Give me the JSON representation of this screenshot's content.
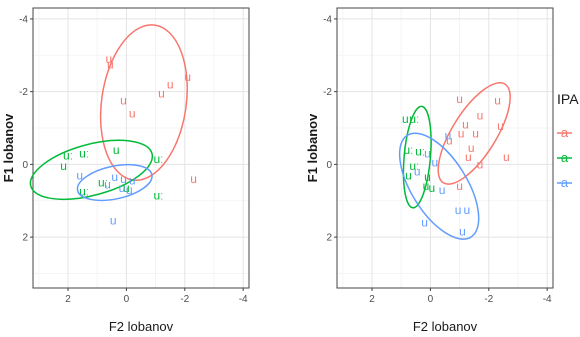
{
  "chart_data": [
    {
      "type": "scatter",
      "title": "",
      "xlabel": "F2 lobanov",
      "ylabel": "F1 lobanov",
      "xlim": [
        3.2,
        -4.2
      ],
      "ylim": [
        -4.3,
        3.4
      ],
      "x_reversed": true,
      "y_reversed": true,
      "xticks": [
        "2",
        "0",
        "-2",
        "-4"
      ],
      "xtick_values": [
        2,
        0,
        -2,
        -4
      ],
      "yticks": [
        "-4",
        "-2",
        "0",
        "2"
      ],
      "ytick_values": [
        -4,
        -2,
        0,
        2
      ],
      "grid": true,
      "series": [
        {
          "legend_key": "a",
          "color": "#F8766D",
          "points": [
            {
              "x": 0.6,
              "y": -2.9,
              "label": "u"
            },
            {
              "x": 0.55,
              "y": -2.75,
              "label": "u"
            },
            {
              "x": -2.1,
              "y": -2.4,
              "label": "u"
            },
            {
              "x": -1.5,
              "y": -2.2,
              "label": "u"
            },
            {
              "x": -1.2,
              "y": -1.95,
              "label": "u"
            },
            {
              "x": 0.1,
              "y": -1.75,
              "label": "u"
            },
            {
              "x": -0.2,
              "y": -1.4,
              "label": "u"
            },
            {
              "x": -2.3,
              "y": 0.4,
              "label": "u"
            }
          ],
          "ellipse": {
            "cx": -0.6,
            "cy": -1.7,
            "rx": 1.45,
            "ry": 2.15,
            "angle": 8
          }
        },
        {
          "legend_key": "a",
          "color": "#00BA38",
          "points": [
            {
              "x": 2.0,
              "y": -0.25,
              "label": "uː"
            },
            {
              "x": 1.45,
              "y": -0.3,
              "label": "uː"
            },
            {
              "x": 0.35,
              "y": -0.4,
              "label": "u"
            },
            {
              "x": -1.1,
              "y": -0.15,
              "label": "uː"
            },
            {
              "x": 2.15,
              "y": 0.05,
              "label": "u"
            },
            {
              "x": 0.8,
              "y": 0.5,
              "label": "uː"
            },
            {
              "x": 0.0,
              "y": 0.65,
              "label": "u"
            },
            {
              "x": 1.45,
              "y": 0.75,
              "label": "uː"
            },
            {
              "x": -1.1,
              "y": 0.85,
              "label": "uː"
            }
          ],
          "ellipse": {
            "cx": 1.2,
            "cy": 0.15,
            "rx": 2.15,
            "ry": 0.7,
            "angle": -15
          }
        },
        {
          "legend_key": "a",
          "color": "#619CFF",
          "points": [
            {
              "x": 1.6,
              "y": 0.3,
              "label": "u"
            },
            {
              "x": 0.4,
              "y": 0.35,
              "label": "u"
            },
            {
              "x": 0.1,
              "y": 0.4,
              "label": "u"
            },
            {
              "x": -0.2,
              "y": 0.45,
              "label": "u"
            },
            {
              "x": 0.65,
              "y": 0.55,
              "label": "u"
            },
            {
              "x": 0.15,
              "y": 0.65,
              "label": "u"
            },
            {
              "x": -0.1,
              "y": 0.7,
              "label": "u"
            },
            {
              "x": 0.45,
              "y": 1.55,
              "label": "u"
            }
          ],
          "ellipse": {
            "cx": 0.4,
            "cy": 0.5,
            "rx": 1.3,
            "ry": 0.45,
            "angle": -12
          }
        }
      ]
    },
    {
      "type": "scatter",
      "title": "",
      "xlabel": "F2 lobanov",
      "ylabel": "F1 lobanov",
      "xlim": [
        3.2,
        -4.2
      ],
      "ylim": [
        -4.3,
        3.4
      ],
      "x_reversed": true,
      "y_reversed": true,
      "xticks": [
        "2",
        "0",
        "-2",
        "-4"
      ],
      "xtick_values": [
        2,
        0,
        -2,
        -4
      ],
      "yticks": [
        "-4",
        "-2",
        "0",
        "2"
      ],
      "ytick_values": [
        -4,
        -2,
        0,
        2
      ],
      "grid": true,
      "series": [
        {
          "legend_key": "a",
          "color": "#F8766D",
          "points": [
            {
              "x": -1.0,
              "y": -1.8,
              "label": "u"
            },
            {
              "x": -2.3,
              "y": -1.75,
              "label": "u"
            },
            {
              "x": -1.7,
              "y": -1.35,
              "label": "u"
            },
            {
              "x": -1.2,
              "y": -1.1,
              "label": "u"
            },
            {
              "x": -2.4,
              "y": -1.05,
              "label": "u"
            },
            {
              "x": -1.05,
              "y": -0.85,
              "label": "u"
            },
            {
              "x": -1.55,
              "y": -0.85,
              "label": "u"
            },
            {
              "x": -0.65,
              "y": -0.65,
              "label": "u"
            },
            {
              "x": -1.4,
              "y": -0.45,
              "label": "u"
            },
            {
              "x": -1.3,
              "y": -0.2,
              "label": "u"
            },
            {
              "x": -2.6,
              "y": -0.2,
              "label": "u"
            },
            {
              "x": -1.7,
              "y": 0.0,
              "label": "u"
            },
            {
              "x": -1.0,
              "y": 0.6,
              "label": "u"
            }
          ],
          "ellipse": {
            "cx": -1.5,
            "cy": -0.85,
            "rx": 0.75,
            "ry": 1.6,
            "angle": 32
          }
        },
        {
          "legend_key": "a",
          "color": "#00BA38",
          "points": [
            {
              "x": 0.8,
              "y": -1.25,
              "label": "uː"
            },
            {
              "x": 0.55,
              "y": -1.25,
              "label": "uː"
            },
            {
              "x": 0.75,
              "y": -0.4,
              "label": "uː"
            },
            {
              "x": 0.35,
              "y": -0.35,
              "label": "uː"
            },
            {
              "x": 0.55,
              "y": 0.05,
              "label": "uː"
            },
            {
              "x": 0.75,
              "y": 0.3,
              "label": "u"
            },
            {
              "x": 0.1,
              "y": 0.35,
              "label": "u"
            },
            {
              "x": 0.15,
              "y": 0.6,
              "label": "u"
            },
            {
              "x": -0.05,
              "y": 0.65,
              "label": "u"
            }
          ],
          "ellipse": {
            "cx": 0.45,
            "cy": -0.2,
            "rx": 0.45,
            "ry": 1.4,
            "angle": 5
          }
        },
        {
          "legend_key": "a",
          "color": "#619CFF",
          "points": [
            {
              "x": -0.6,
              "y": -0.8,
              "label": "u"
            },
            {
              "x": 0.1,
              "y": -0.3,
              "label": "u"
            },
            {
              "x": -0.15,
              "y": -0.05,
              "label": "u"
            },
            {
              "x": 0.45,
              "y": 0.2,
              "label": "u"
            },
            {
              "x": -0.4,
              "y": 0.7,
              "label": "u"
            },
            {
              "x": -0.95,
              "y": 1.25,
              "label": "u"
            },
            {
              "x": -1.25,
              "y": 1.25,
              "label": "u"
            },
            {
              "x": 0.2,
              "y": 1.6,
              "label": "u"
            },
            {
              "x": -1.1,
              "y": 1.85,
              "label": "u"
            }
          ],
          "ellipse": {
            "cx": -0.3,
            "cy": 0.6,
            "rx": 0.95,
            "ry": 1.65,
            "angle": -32
          }
        }
      ]
    }
  ],
  "legend": {
    "title": "IPA",
    "items": [
      {
        "label": "a",
        "color": "#F8766D"
      },
      {
        "label": "a",
        "color": "#00BA38"
      },
      {
        "label": "a",
        "color": "#619CFF"
      }
    ]
  }
}
